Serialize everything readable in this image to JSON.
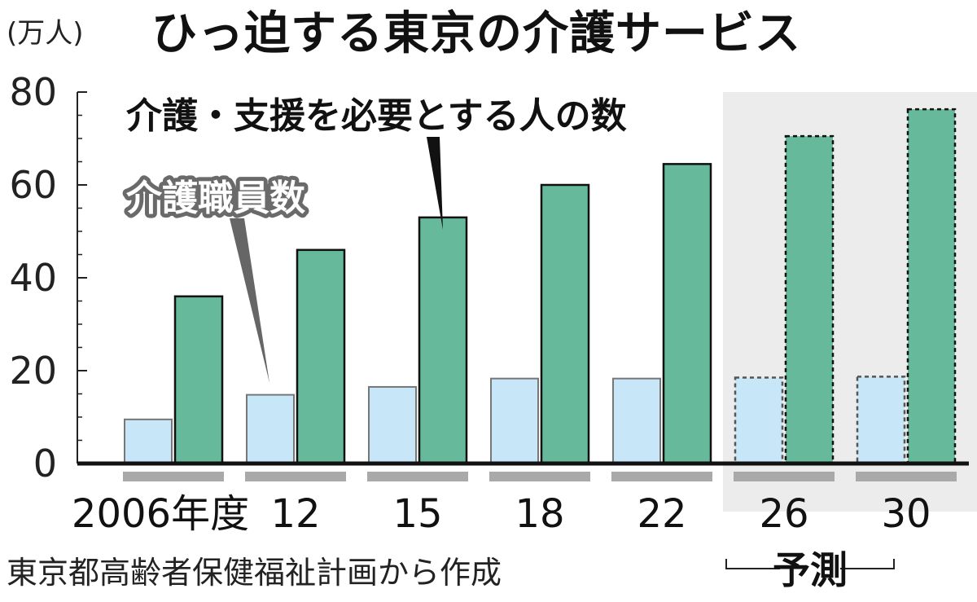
{
  "title": "ひっ迫する東京の介護サービス",
  "unit": "(万人)",
  "source": "東京都高齢者保健福祉計画から作成",
  "forecast_label": "予測",
  "colors": {
    "staff": "#c7e6f8",
    "need": "#66b99a",
    "forecast_bg": "#ececec",
    "period_bar": "#a9a9a9"
  },
  "chart_data": {
    "type": "bar",
    "title": "ひっ迫する東京の介護サービス",
    "ylabel": "(万人)",
    "categories": [
      "2006年度",
      "12",
      "15",
      "18",
      "22",
      "26",
      "30"
    ],
    "forecast_from_index": 5,
    "ylim": [
      0,
      80
    ],
    "yticks": [
      "0",
      "20",
      "40",
      "60",
      "80"
    ],
    "grid": false,
    "series": [
      {
        "name": "介護職員数",
        "values": [
          9.5,
          14.8,
          16.5,
          18.3,
          18.3,
          18.5,
          18.7
        ]
      },
      {
        "name": "介護・支援を必要とする人の数",
        "values": [
          36,
          46,
          53,
          60,
          64.5,
          70.5,
          76.3
        ]
      }
    ]
  }
}
